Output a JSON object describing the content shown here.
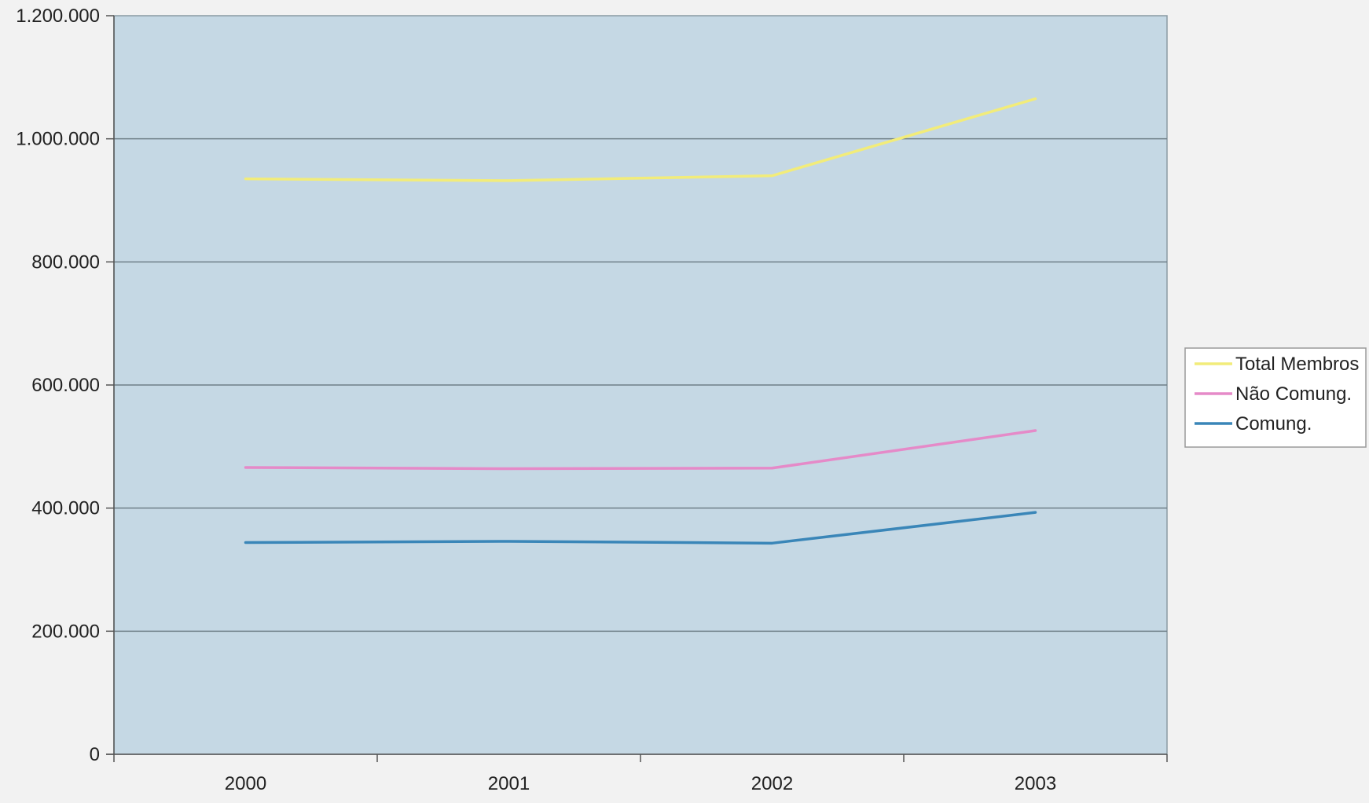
{
  "chart_data": {
    "type": "line",
    "categories": [
      "2000",
      "2001",
      "2002",
      "2003"
    ],
    "series": [
      {
        "name": "Total Membros",
        "values": [
          935000,
          932000,
          940000,
          1065000
        ],
        "color": "#f2ec7a"
      },
      {
        "name": "Não Comung.",
        "values": [
          466000,
          464000,
          465000,
          526000
        ],
        "color": "#e58ac8"
      },
      {
        "name": "Comung.",
        "values": [
          344000,
          346000,
          343000,
          393000
        ],
        "color": "#3a86b8"
      }
    ],
    "yticks": [
      "0",
      "200.000",
      "400.000",
      "600.000",
      "800.000",
      "1.000.000",
      "1.200.000"
    ],
    "ylim": [
      0,
      1200000
    ],
    "grid": true,
    "legend_position": "right",
    "plot_background": "#c5d8e4",
    "title": "",
    "xlabel": "",
    "ylabel": ""
  }
}
